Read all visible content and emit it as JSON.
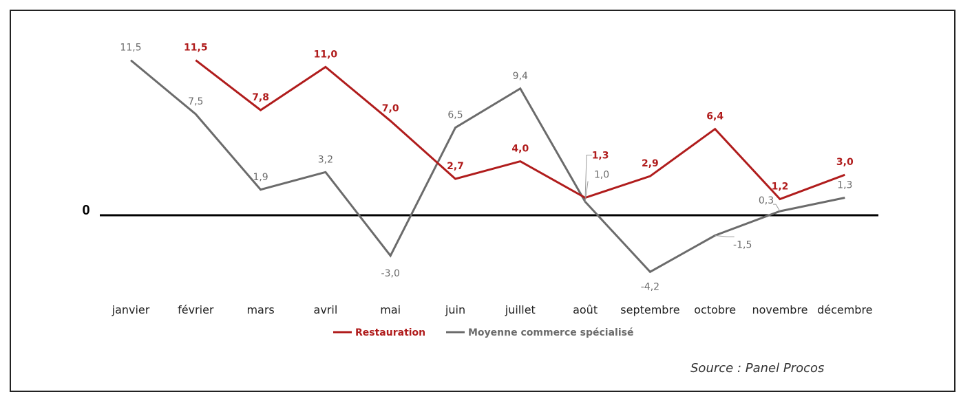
{
  "chart_data": {
    "type": "line",
    "categories": [
      "janvier",
      "février",
      "mars",
      "avril",
      "mai",
      "juin",
      "juillet",
      "août",
      "septembre",
      "octobre",
      "novembre",
      "décembre"
    ],
    "series": [
      {
        "name": "Restauration",
        "color": "#b01c1c",
        "values": [
          null,
          11.5,
          7.8,
          11.0,
          7.0,
          2.7,
          4.0,
          1.3,
          2.9,
          6.4,
          1.2,
          3.0
        ],
        "labels": [
          "",
          "11,5",
          "7,8",
          "11,0",
          "7,0",
          "2,7",
          "4,0",
          "1,3",
          "2,9",
          "6,4",
          "1,2",
          "3,0"
        ]
      },
      {
        "name": "Moyenne commerce spécialisé",
        "color": "#6b6b6b",
        "values": [
          11.5,
          7.5,
          1.9,
          3.2,
          -3.0,
          6.5,
          9.4,
          1.0,
          -4.2,
          -1.5,
          0.3,
          1.3
        ],
        "labels": [
          "11,5",
          "7,5",
          "1,9",
          "3,2",
          "-3,0",
          "6,5",
          "9,4",
          "1,0",
          "-4,2",
          "-1,5",
          "0,3",
          "1,3"
        ]
      }
    ],
    "zero_label": "0",
    "legend_position": "bottom"
  },
  "source": "Source : Panel Procos"
}
